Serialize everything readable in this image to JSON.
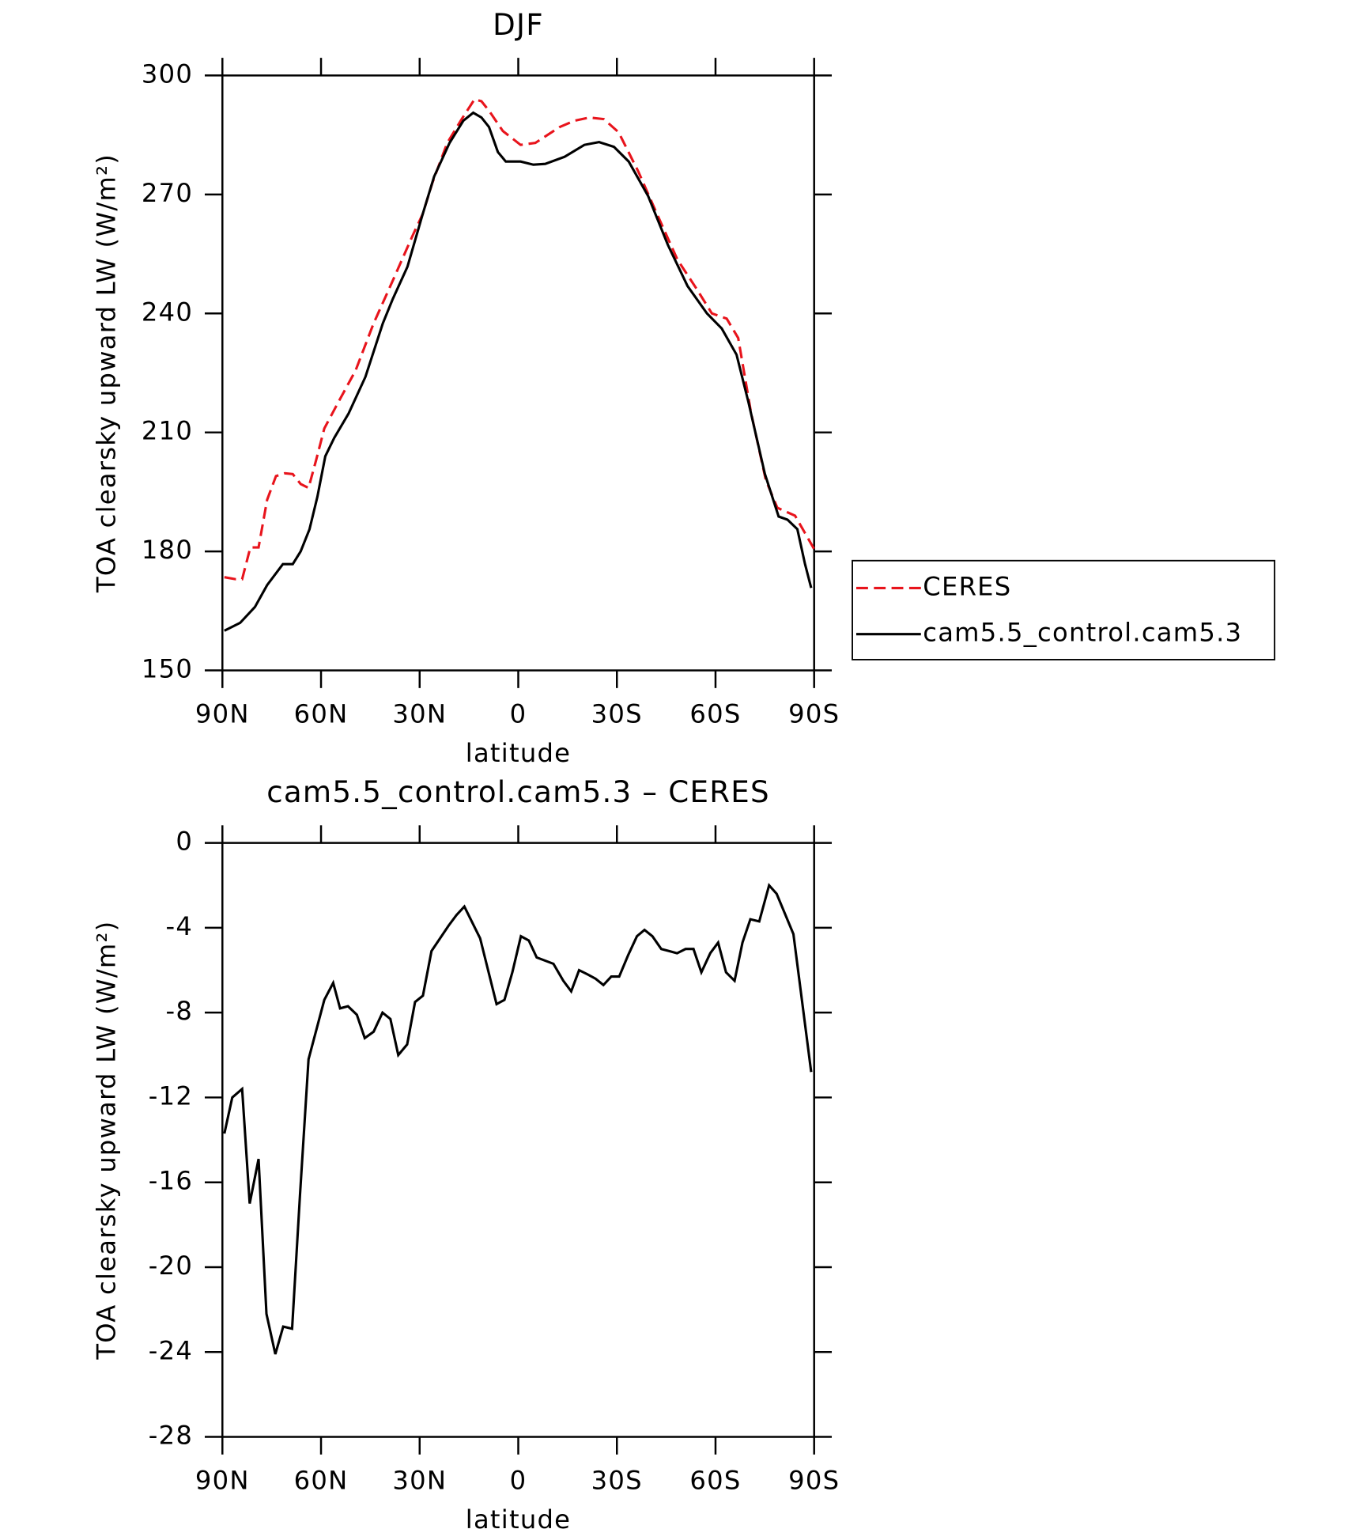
{
  "chart_data": [
    {
      "type": "line",
      "title": "DJF",
      "xlabel": "latitude",
      "ylabel": "TOA clearsky upward LW (W/m²)",
      "xlim": [
        90,
        -90
      ],
      "xticks": [
        {
          "value": 90,
          "label": "90N"
        },
        {
          "value": 60,
          "label": "60N"
        },
        {
          "value": 30,
          "label": "30N"
        },
        0,
        {
          "value": -30,
          "label": "30S"
        },
        {
          "value": -60,
          "label": "60S"
        },
        {
          "value": -90,
          "label": "90S"
        }
      ],
      "ylim": [
        150,
        300
      ],
      "yticks": [
        150,
        180,
        210,
        240,
        270,
        300
      ],
      "legend": "right",
      "series": [
        {
          "name": "CERES",
          "color": "#e8141c",
          "dashed": true,
          "x": [
            89.4,
            86,
            84,
            81.5,
            79,
            76.4,
            73.7,
            71,
            68.6,
            66.2,
            63.8,
            61.5,
            59,
            54.5,
            49.5,
            44,
            38,
            32.1,
            29.1,
            26.1,
            21.6,
            17.2,
            13.3,
            11.2,
            8.8,
            4.7,
            -0.7,
            -5.2,
            -12.6,
            -17.1,
            -21.6,
            -26,
            -30.5,
            -36.5,
            -42.4,
            -48.4,
            -54.4,
            -58.9,
            -63.4,
            -66.9,
            -70.8,
            -75.3,
            -78.8,
            -84.2,
            -90
          ],
          "values": [
            173.5,
            173,
            173,
            181,
            181,
            193,
            199,
            199.7,
            199.5,
            197,
            196,
            203,
            211,
            218,
            225.6,
            237.5,
            248.6,
            259.7,
            265,
            273,
            283,
            289,
            294,
            293.5,
            291,
            286,
            282.5,
            283,
            287,
            288.6,
            289.4,
            289,
            285.7,
            275.8,
            264.7,
            253.6,
            246,
            240,
            238.7,
            233.8,
            215,
            198,
            191,
            189,
            180.6
          ]
        },
        {
          "name": "cam5.5_control.cam5.3",
          "color": "#000000",
          "dashed": false,
          "x": [
            89.4,
            84.6,
            80.1,
            76.4,
            71.6,
            68.6,
            66.2,
            63.5,
            61.1,
            58.7,
            56,
            51.6,
            46.5,
            41.2,
            38.2,
            33.7,
            29.2,
            25.6,
            20.9,
            16.7,
            13.7,
            11.2,
            8.9,
            6.2,
            3.8,
            -0.7,
            -4.6,
            -8.2,
            -14.1,
            -20.1,
            -24.6,
            -29.1,
            -33.6,
            -39.5,
            -45.5,
            -51.5,
            -57.4,
            -61.9,
            -66.4,
            -70,
            -75,
            -79.2,
            -81.9,
            -84.9,
            -87.2,
            -89.1
          ],
          "values": [
            160,
            162,
            166,
            171.5,
            176.8,
            176.8,
            180,
            185.6,
            193.8,
            204,
            208.6,
            214.8,
            224,
            237.5,
            243.6,
            251.8,
            264.7,
            274.5,
            283,
            288.6,
            290.6,
            289.4,
            287,
            280.7,
            278.3,
            278.3,
            277.5,
            277.7,
            279.5,
            282.5,
            283.2,
            282,
            278.3,
            269.6,
            257.3,
            246.9,
            240,
            236.2,
            229.6,
            217.7,
            199.6,
            188.8,
            188,
            185.6,
            176.9,
            170.8
          ]
        }
      ]
    },
    {
      "type": "line",
      "title": "cam5.5_control.cam5.3 – CERES",
      "xlabel": "latitude",
      "ylabel": "TOA clearsky upward LW (W/m²)",
      "xlim": [
        90,
        -90
      ],
      "xticks": [
        {
          "value": 90,
          "label": "90N"
        },
        {
          "value": 60,
          "label": "60N"
        },
        {
          "value": 30,
          "label": "30N"
        },
        0,
        {
          "value": -30,
          "label": "30S"
        },
        {
          "value": -60,
          "label": "60S"
        },
        {
          "value": -90,
          "label": "90S"
        }
      ],
      "ylim": [
        -28,
        0
      ],
      "yticks": [
        -28,
        -24,
        -20,
        -16,
        -12,
        -8,
        -4,
        0
      ],
      "series": [
        {
          "color": "#000000",
          "dashed": false,
          "x": [
            89.4,
            87,
            84,
            81.7,
            79,
            76.6,
            73.9,
            71.5,
            68.8,
            66.4,
            63.8,
            59,
            56.3,
            54.2,
            51.8,
            49.1,
            46.7,
            44,
            41.3,
            38.9,
            36.5,
            33.8,
            31.4,
            29,
            26.4,
            21.2,
            18.8,
            16.4,
            11.6,
            6.6,
            4.2,
            1.8,
            -0.8,
            -3.2,
            -5.6,
            -10.7,
            -13.7,
            -16.1,
            -18.5,
            -21.1,
            -23.5,
            -25.9,
            -28.3,
            -30.7,
            -33.4,
            -36.1,
            -38.4,
            -40.8,
            -43.5,
            -45.9,
            -48.3,
            -50.9,
            -53.3,
            -55.7,
            -58.4,
            -60.8,
            -63.2,
            -65.8,
            -68.2,
            -70.6,
            -73.3,
            -76.3,
            -78.6,
            -83.7,
            -89.1
          ],
          "values": [
            -13.7,
            -12,
            -11.6,
            -17,
            -14.9,
            -22.2,
            -24.1,
            -22.8,
            -22.9,
            -16.6,
            -10.2,
            -7.4,
            -6.6,
            -7.8,
            -7.7,
            -8.1,
            -9.2,
            -8.9,
            -8,
            -8.3,
            -10,
            -9.5,
            -7.5,
            -7.2,
            -5.1,
            -3.9,
            -3.4,
            -3,
            -4.5,
            -7.6,
            -7.4,
            -6.1,
            -4.4,
            -4.6,
            -5.4,
            -5.7,
            -6.5,
            -7,
            -6,
            -6.2,
            -6.4,
            -6.7,
            -6.3,
            -6.3,
            -5.3,
            -4.4,
            -4.1,
            -4.4,
            -5,
            -5.1,
            -5.2,
            -5,
            -5,
            -6.1,
            -5.2,
            -4.7,
            -6.1,
            -6.5,
            -4.7,
            -3.6,
            -3.7,
            -2,
            -2.4,
            -4.3,
            -10.8
          ]
        }
      ]
    }
  ]
}
